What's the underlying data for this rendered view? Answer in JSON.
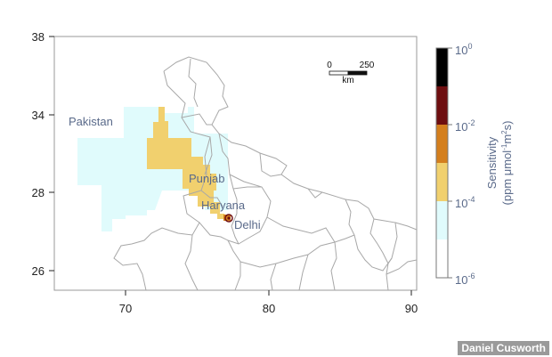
{
  "map": {
    "x_ticks": [
      "70",
      "80",
      "90"
    ],
    "y_ticks": [
      "26",
      "28",
      "34",
      "38"
    ],
    "places": {
      "pakistan": "Pakistan",
      "punjab": "Punjab",
      "haryana": "Haryana",
      "delhi": "Delhi"
    },
    "scale_bar": {
      "start": "0",
      "end": "250",
      "unit": "km"
    },
    "colors": {
      "very_light": "#e0fbfc",
      "yellow": "#f1d06e",
      "orange": "#d47f1e",
      "dark_red": "#6e0e10",
      "black": "#000000",
      "boundary": "#a8a8a8"
    }
  },
  "colorbar": {
    "ticks": [
      {
        "base": "10",
        "exp": "0"
      },
      {
        "base": "10",
        "exp": "-2"
      },
      {
        "base": "10",
        "exp": "-4"
      },
      {
        "base": "10",
        "exp": "-6"
      }
    ],
    "title_line1": "Sensitivity",
    "title_line2_a": "(ppm  μmol",
    "title_line2_exp1": "-1",
    "title_line2_b": "m",
    "title_line2_exp2": "2",
    "title_line2_c": "s)"
  },
  "credit": "Daniel Cusworth"
}
